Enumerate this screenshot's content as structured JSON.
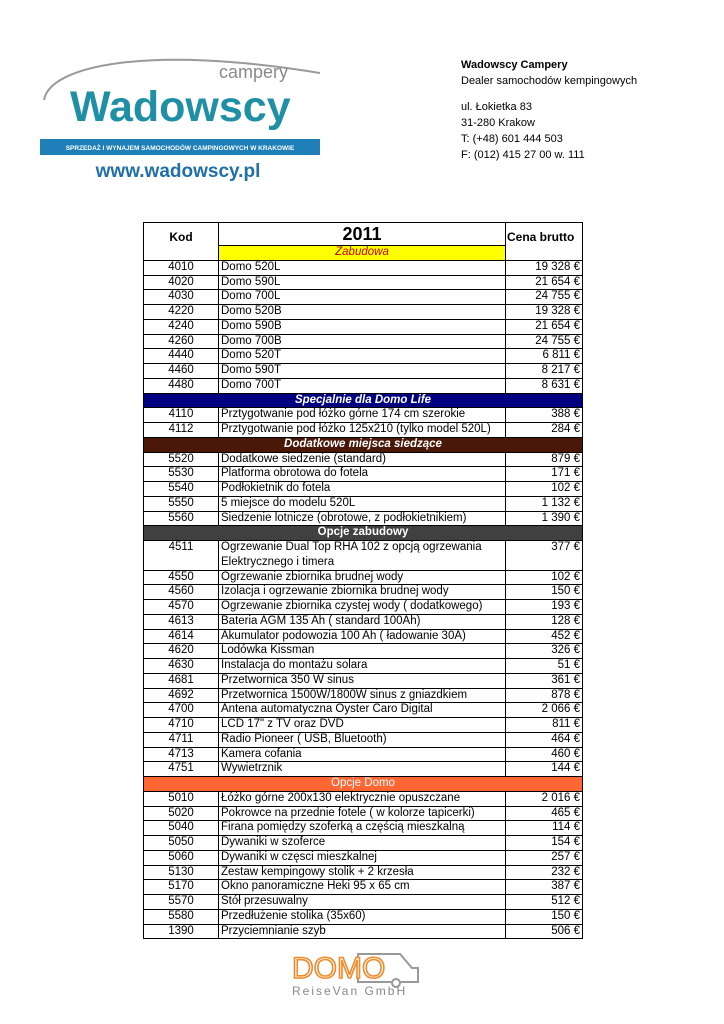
{
  "logo": {
    "sub": "campery",
    "word": "Wadowscy",
    "tagline": "SPRZEDAŻ I WYNAJEM SAMOCHODÓW CAMPINGOWYCH W KRAKOWIE",
    "url": "www.wadowscy.pl"
  },
  "contact": {
    "name": "Wadowscy Campery",
    "lines": [
      "Dealer samochodów kempingowych",
      "ul. Łokietka 83",
      "31-280 Krakow",
      "T: (+48) 601 444 503",
      "F: (012) 415 27 00 w. 111"
    ]
  },
  "table": {
    "headers": [
      "Kod",
      "2011",
      "Cena brutto"
    ],
    "sections": [
      {
        "title": "Zabudowa",
        "rows": [
          [
            "4010",
            "Domo 520L",
            "19 328 €"
          ],
          [
            "4020",
            "Domo 590L",
            "21 654 €"
          ],
          [
            "4030",
            "Domo 700L",
            "24 755 €"
          ],
          [
            "4220",
            "Domo 520B",
            "19 328 €"
          ],
          [
            "4240",
            "Domo 590B",
            "21 654 €"
          ],
          [
            "4260",
            "Domo 700B",
            "24 755 €"
          ],
          [
            "4440",
            "Domo 520T",
            "6 811 €"
          ],
          [
            "4460",
            "Domo 590T",
            "8 217 €"
          ],
          [
            "4480",
            "Domo 700T",
            "8 631 €"
          ]
        ]
      },
      {
        "title": "Specjalnie dla Domo Life",
        "rows": [
          [
            "4110",
            "Prztygotwanie pod łóżko górne 174 cm szerokie",
            "388 €"
          ],
          [
            "4112",
            "Prztygotwanie pod łóżko 125x210 (tylko model 520L)",
            "284 €"
          ]
        ]
      },
      {
        "title": "Dodatkowe miejsca siedzące",
        "rows": [
          [
            "5520",
            "Dodatkowe siedzenie (standard)",
            "879 €"
          ],
          [
            "5530",
            "Platforma obrotowa do fotela",
            "171 €"
          ],
          [
            "5540",
            "Podłokietnik do fotela",
            "102 €"
          ],
          [
            "5550",
            "5 miejsce do modelu 520L",
            "1 132 €"
          ],
          [
            "5560",
            "Siedzenie lotnicze (obrotowe, z podłokietnikiem)",
            "1 390 €"
          ]
        ]
      },
      {
        "title": "Opcje zabudowy",
        "rows": [
          [
            "4511",
            [
              "Ogrzewanie Dual Top RHA 102 z opcją ogrzewania",
              "Elektrycznego i timera"
            ],
            "377 €"
          ],
          [
            "4550",
            "Ogrzewanie zbiornika brudnej wody",
            "102 €"
          ],
          [
            "4560",
            "Izolacja i ogrzewanie zbiornika brudnej wody",
            "150 €"
          ],
          [
            "4570",
            "Ogrzewanie zbiornika czystej wody ( dodatkowego)",
            "193 €"
          ],
          [
            "4613",
            "Bateria AGM 135 Ah ( standard 100Ah)",
            "128 €"
          ],
          [
            "4614",
            "Akumulator podowozia 100 Ah ( ładowanie 30A)",
            "452 €"
          ],
          [
            "4620",
            "Lodówka Kissman",
            "326 €"
          ],
          [
            "4630",
            "Instalacja do montażu solara",
            "51 €"
          ],
          [
            "4681",
            "Przetwornica 350 W sinus",
            "361 €"
          ],
          [
            "4692",
            "Przetwornica 1500W/1800W sinus z gniazdkiem",
            "878 €"
          ],
          [
            "4700",
            "Antena automatyczna Oyster Caro Digital",
            "2 066 €"
          ],
          [
            "4710",
            "LCD 17\" z TV oraz DVD",
            "811 €"
          ],
          [
            "4711",
            "Radio Pioneer ( USB, Bluetooth)",
            "464 €"
          ],
          [
            "4713",
            "Kamera cofania",
            "460 €"
          ],
          [
            "4751",
            "Wywietrznik",
            "144 €"
          ]
        ]
      },
      {
        "title": "Opcje Domo",
        "rows": [
          [
            "5010",
            "Łóżko górne 200x130 elektrycznie opuszczane",
            "2 016 €"
          ],
          [
            "5020",
            "Pokrowce na przednie fotele ( w kolorze tapicerki)",
            "465 €"
          ],
          [
            "5040",
            "Firana pomiędzy szoferką a częścią mieszkalną",
            "114 €"
          ],
          [
            "5050",
            "Dywaniki w szoferce",
            "154 €"
          ],
          [
            "5060",
            "Dywaniki w częsci mieszkalnej",
            "257 €"
          ],
          [
            "5130",
            "Zestaw kempingowy stolik + 2 krzesła",
            "232 €"
          ],
          [
            "5170",
            "Okno panoramiczne Heki 95 x 65 cm",
            "387 €"
          ],
          [
            "5570",
            "Stół przesuwalny",
            "512 €"
          ],
          [
            "5580",
            "Przedłużenie stolika (35x60)",
            "150 €"
          ],
          [
            "1390",
            "Przyciemnianie szyb",
            "506 €"
          ]
        ]
      }
    ]
  },
  "footer": {
    "brand": "DOMO",
    "sub": "ReiseVan GmbH"
  }
}
